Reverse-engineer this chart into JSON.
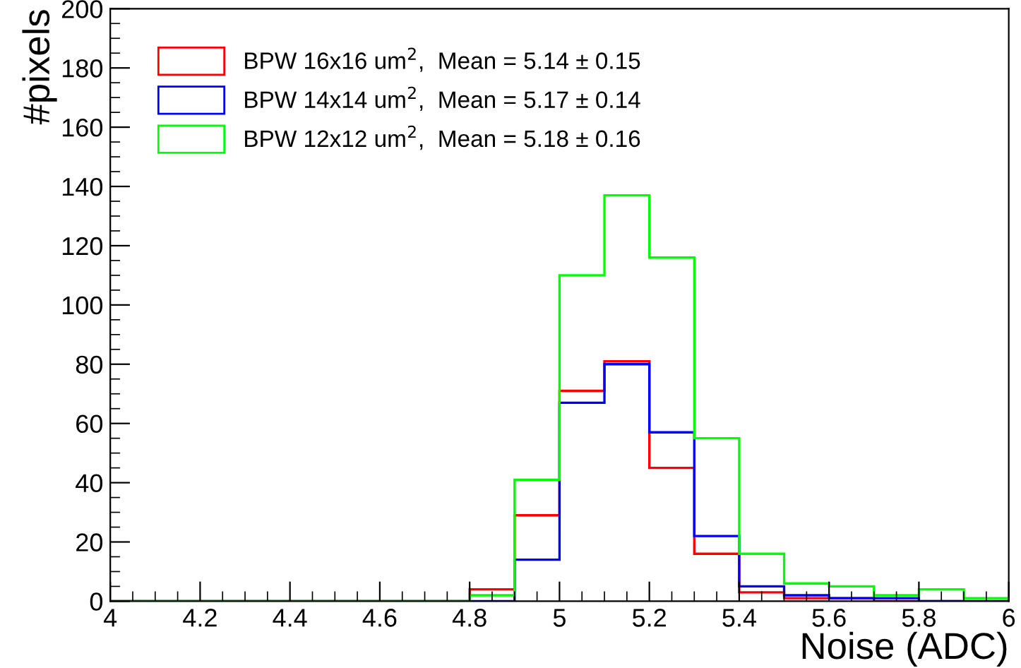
{
  "chart_data": {
    "type": "histogram",
    "xlabel": "Noise (ADC)",
    "ylabel": "#pixels",
    "bins": [
      4.0,
      4.1,
      4.2,
      4.3,
      4.4,
      4.5,
      4.6,
      4.7,
      4.8,
      4.9,
      5.0,
      5.1,
      5.2,
      5.3,
      5.4,
      5.5,
      5.6,
      5.7,
      5.8,
      5.9,
      6.0
    ],
    "series": [
      {
        "name": "BPW 16x16 um$^{2}$,  Mean = 5.14 ± 0.15",
        "color": "#ff0000",
        "values": [
          0,
          0,
          0,
          0,
          0,
          0,
          0,
          0,
          4,
          29,
          71,
          81,
          45,
          16,
          3,
          1,
          1,
          0,
          0,
          0
        ]
      },
      {
        "name": "BPW 14x14 um$^{2}$,  Mean = 5.17 ± 0.14",
        "color": "#0000ff",
        "values": [
          0,
          0,
          0,
          0,
          0,
          0,
          0,
          0,
          0,
          14,
          67,
          80,
          57,
          22,
          5,
          2,
          1,
          1,
          0,
          0
        ]
      },
      {
        "name": "BPW 12x12 um$^{2}$,  Mean = 5.18 ± 0.16",
        "color": "#00ff00",
        "values": [
          0,
          0,
          0,
          0,
          0,
          0,
          0,
          0,
          2,
          41,
          110,
          137,
          116,
          55,
          16,
          6,
          5,
          2,
          4,
          1
        ]
      }
    ],
    "xlim": [
      4,
      6
    ],
    "xticks": [
      4,
      4.2,
      4.4,
      4.6,
      4.8,
      5,
      5.2,
      5.4,
      5.6,
      5.8,
      6
    ],
    "ylim": [
      0,
      200
    ],
    "yticks": [
      0,
      20,
      40,
      60,
      80,
      100,
      120,
      140,
      160,
      180,
      200
    ],
    "legend": "top left",
    "grid": false
  }
}
